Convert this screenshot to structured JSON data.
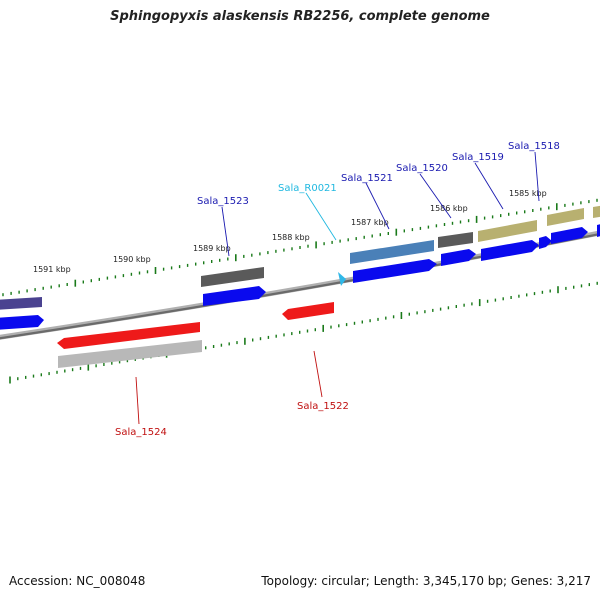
{
  "title": "Sphingopyxis alaskensis RB2256, complete genome",
  "footer": {
    "accession": "Accession: NC_008048",
    "summary": "Topology: circular; Length: 3,345,170 bp; Genes: 3,217"
  },
  "colors": {
    "backbone": "#7a7a7a",
    "tick": "#1a7a1a",
    "gene_label_forward": "#1a1ab0",
    "gene_label_reverse": "#c01010",
    "rna_label": "#20b8e0",
    "cds_forward": "#0a0aee",
    "cds_reverse": "#ee1a1a",
    "rna": "#30b8e8"
  },
  "scale_labels": [
    "1585 kbp",
    "1586 kbp",
    "1587 kbp",
    "1588 kbp",
    "1589 kbp",
    "1590 kbp",
    "1591 kbp"
  ],
  "gene_labels": [
    {
      "text": "Sala_1518",
      "kind": "forward"
    },
    {
      "text": "Sala_1519",
      "kind": "forward"
    },
    {
      "text": "Sala_1520",
      "kind": "forward"
    },
    {
      "text": "Sala_1521",
      "kind": "forward"
    },
    {
      "text": "Sala_R0021",
      "kind": "rna"
    },
    {
      "text": "Sala_1523",
      "kind": "forward"
    },
    {
      "text": "Sala_1522",
      "kind": "reverse"
    },
    {
      "text": "Sala_1524",
      "kind": "reverse"
    }
  ],
  "feature_colors": {
    "purple": "#4a4290",
    "steelblue": "#4a80b8",
    "darkgray": "#5a5a5a",
    "olive": "#b8b070",
    "lightgray": "#b8b8b8"
  }
}
